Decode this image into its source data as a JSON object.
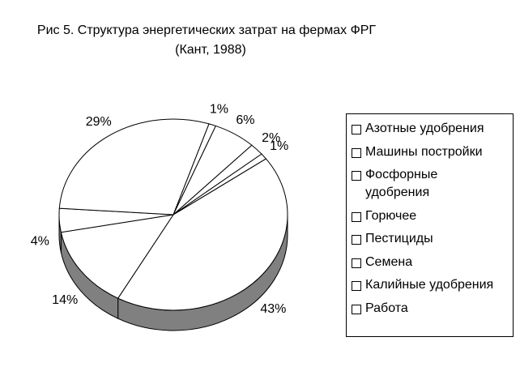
{
  "chart_data": {
    "type": "pie3d",
    "title": "Рис 5. Структура энергетических затрат на фермах ФРГ",
    "subtitle": "(Кант, 1988)",
    "categories": [
      "Азотные удобрения",
      "Машины постройки",
      "Фосфорные удобрения",
      "Горючее",
      "Пестициды",
      "Семена",
      "Калийные удобрения",
      "Работа"
    ],
    "values": [
      43,
      14,
      4,
      29,
      1,
      6,
      2,
      1
    ],
    "value_labels": [
      "43%",
      "14%",
      "4%",
      "29%",
      "1%",
      "6%",
      "2%",
      "1%"
    ],
    "color": "#ffffff",
    "side_color": "#808080"
  }
}
